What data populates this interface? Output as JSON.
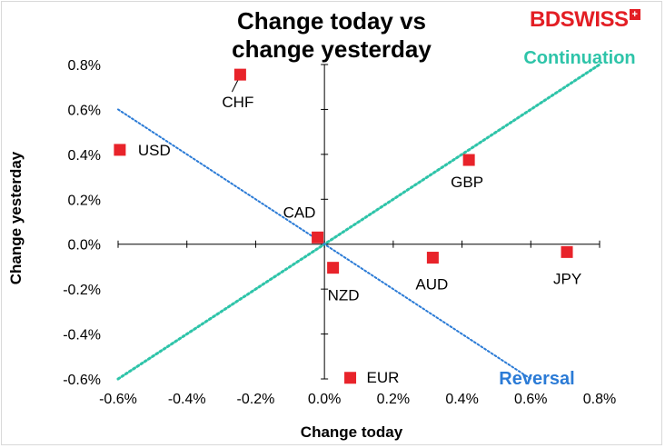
{
  "chart_data": {
    "type": "scatter",
    "title": "Change today vs change yesterday",
    "title_lines": [
      "Change today vs",
      "change yesterday"
    ],
    "xlabel": "Change today",
    "ylabel": "Change yesterday",
    "xlim": [
      -0.6,
      0.8
    ],
    "ylim": [
      -0.6,
      0.8
    ],
    "x_ticks": [
      -0.6,
      -0.4,
      -0.2,
      0.0,
      0.2,
      0.4,
      0.6,
      0.8
    ],
    "y_ticks": [
      -0.6,
      -0.4,
      -0.2,
      0.0,
      0.2,
      0.4,
      0.6,
      0.8
    ],
    "x_tick_labels": [
      "-0.6%",
      "-0.4%",
      "-0.2%",
      "0.0%",
      "0.2%",
      "0.4%",
      "0.6%",
      "0.8%"
    ],
    "y_tick_labels": [
      "-0.6%",
      "-0.4%",
      "-0.2%",
      "0.0%",
      "0.2%",
      "0.4%",
      "0.6%",
      "0.8%"
    ],
    "points": [
      {
        "label": "CHF",
        "x": -0.245,
        "y": 0.755
      },
      {
        "label": "USD",
        "x": -0.595,
        "y": 0.42
      },
      {
        "label": "GBP",
        "x": 0.42,
        "y": 0.375
      },
      {
        "label": "CAD",
        "x": -0.02,
        "y": 0.03
      },
      {
        "label": "AUD",
        "x": 0.315,
        "y": -0.06
      },
      {
        "label": "JPY",
        "x": 0.705,
        "y": -0.035
      },
      {
        "label": "NZD",
        "x": 0.025,
        "y": -0.105
      },
      {
        "label": "EUR",
        "x": 0.075,
        "y": -0.595
      }
    ],
    "reference_lines": [
      {
        "name": "Continuation",
        "from": [
          -0.6,
          -0.6
        ],
        "to": [
          0.8,
          0.8
        ],
        "color": "#2ec4a9"
      },
      {
        "name": "Reversal",
        "from": [
          -0.6,
          0.6
        ],
        "to": [
          0.6,
          -0.6
        ],
        "color": "#2b7bd6"
      }
    ],
    "marker_color": "#e8232a",
    "grid": false
  },
  "brand": {
    "part1": "BD",
    "part2": "SWISS",
    "plus": "+"
  }
}
